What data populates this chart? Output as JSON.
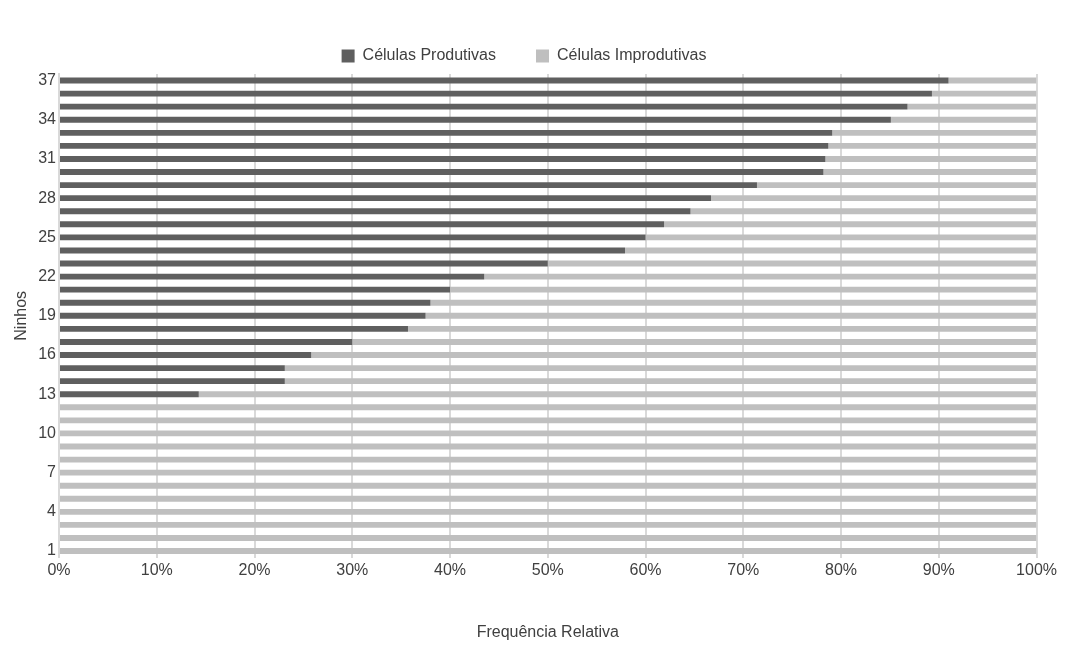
{
  "chart_data": {
    "type": "bar",
    "orientation": "horizontal",
    "stacked": true,
    "xlabel": "Frequência Relativa",
    "ylabel": "Ninhos",
    "legend": "top",
    "grid": "x",
    "categories": [
      "37",
      null,
      null,
      "34",
      null,
      null,
      "31",
      null,
      null,
      "28",
      null,
      null,
      "25",
      null,
      null,
      "22",
      null,
      null,
      "19",
      null,
      null,
      "16",
      null,
      null,
      "13",
      null,
      null,
      "10",
      null,
      null,
      "7",
      null,
      null,
      "4",
      null,
      null,
      "1"
    ],
    "series": [
      {
        "name": "Células Produtivas",
        "color": "#5f5f5f",
        "values": [
          91,
          89.3,
          86.8,
          85.1,
          79.1,
          78.7,
          78.4,
          78.2,
          71.4,
          66.7,
          64.6,
          61.9,
          60,
          57.9,
          50,
          43.5,
          40,
          38,
          37.5,
          35.7,
          30,
          25.8,
          23.1,
          23.1,
          14.3,
          0,
          0,
          0,
          0,
          0,
          0,
          0,
          0,
          0,
          0,
          0,
          0
        ]
      },
      {
        "name": "Células Improdutivas",
        "color": "#bfbfbf",
        "values": [
          9,
          10.7,
          13.2,
          14.9,
          20.9,
          21.3,
          21.6,
          21.8,
          28.6,
          33.3,
          35.4,
          38.1,
          40,
          42.1,
          50,
          56.5,
          60,
          62,
          62.5,
          64.3,
          70,
          74.2,
          76.9,
          76.9,
          85.7,
          100,
          100,
          100,
          100,
          100,
          100,
          100,
          100,
          100,
          100,
          100,
          100
        ]
      }
    ],
    "xlim": [
      0,
      100
    ],
    "xticks": [
      {
        "value": 0,
        "label": "0%"
      },
      {
        "value": 10,
        "label": "10%"
      },
      {
        "value": 20,
        "label": "20%"
      },
      {
        "value": 30,
        "label": "30%"
      },
      {
        "value": 40,
        "label": "40%"
      },
      {
        "value": 50,
        "label": "50%"
      },
      {
        "value": 60,
        "label": "60%"
      },
      {
        "value": 70,
        "label": "70%"
      },
      {
        "value": 80,
        "label": "80%"
      },
      {
        "value": 90,
        "label": "90%"
      },
      {
        "value": 100,
        "label": "100%"
      }
    ]
  }
}
